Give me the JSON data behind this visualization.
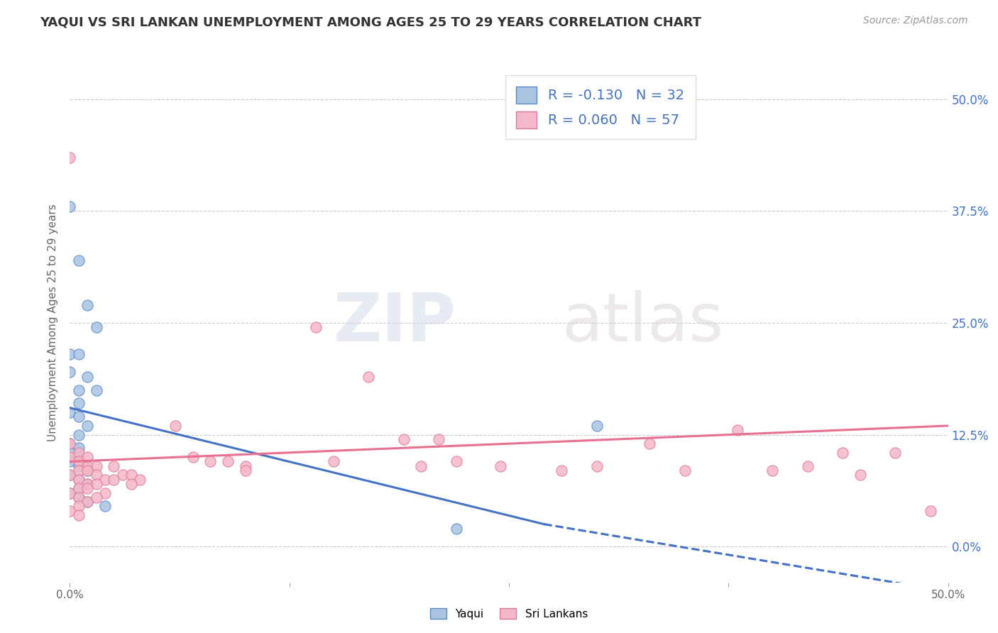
{
  "title": "YAQUI VS SRI LANKAN UNEMPLOYMENT AMONG AGES 25 TO 29 YEARS CORRELATION CHART",
  "source_text": "Source: ZipAtlas.com",
  "ylabel": "Unemployment Among Ages 25 to 29 years",
  "xlim": [
    0.0,
    0.5
  ],
  "ylim": [
    -0.04,
    0.54
  ],
  "y_ticks": [
    0.0,
    0.125,
    0.25,
    0.375,
    0.5
  ],
  "y_tick_labels_right": [
    "0.0%",
    "12.5%",
    "25.0%",
    "37.5%",
    "50.0%"
  ],
  "watermark_zip": "ZIP",
  "watermark_atlas": "atlas",
  "legend_yaqui_r": "-0.130",
  "legend_yaqui_n": "32",
  "legend_sri_r": "0.060",
  "legend_sri_n": "57",
  "yaqui_color": "#aac4e2",
  "sri_color": "#f5b8c8",
  "yaqui_edge_color": "#5588cc",
  "sri_edge_color": "#dd7799",
  "yaqui_line_color": "#4472c4",
  "sri_line_color": "#e87090",
  "yaqui_scatter": [
    [
      0.0,
      0.38
    ],
    [
      0.005,
      0.32
    ],
    [
      0.01,
      0.27
    ],
    [
      0.015,
      0.245
    ],
    [
      0.0,
      0.215
    ],
    [
      0.005,
      0.215
    ],
    [
      0.0,
      0.195
    ],
    [
      0.01,
      0.19
    ],
    [
      0.005,
      0.175
    ],
    [
      0.015,
      0.175
    ],
    [
      0.005,
      0.16
    ],
    [
      0.0,
      0.15
    ],
    [
      0.005,
      0.145
    ],
    [
      0.01,
      0.135
    ],
    [
      0.005,
      0.125
    ],
    [
      0.0,
      0.115
    ],
    [
      0.005,
      0.11
    ],
    [
      0.0,
      0.105
    ],
    [
      0.005,
      0.1
    ],
    [
      0.0,
      0.095
    ],
    [
      0.005,
      0.09
    ],
    [
      0.01,
      0.085
    ],
    [
      0.0,
      0.08
    ],
    [
      0.005,
      0.075
    ],
    [
      0.01,
      0.07
    ],
    [
      0.005,
      0.065
    ],
    [
      0.0,
      0.06
    ],
    [
      0.005,
      0.055
    ],
    [
      0.01,
      0.05
    ],
    [
      0.02,
      0.045
    ],
    [
      0.3,
      0.135
    ],
    [
      0.22,
      0.02
    ]
  ],
  "sri_scatter": [
    [
      0.0,
      0.435
    ],
    [
      0.0,
      0.115
    ],
    [
      0.005,
      0.105
    ],
    [
      0.0,
      0.1
    ],
    [
      0.005,
      0.095
    ],
    [
      0.01,
      0.09
    ],
    [
      0.005,
      0.085
    ],
    [
      0.0,
      0.08
    ],
    [
      0.005,
      0.075
    ],
    [
      0.01,
      0.07
    ],
    [
      0.005,
      0.065
    ],
    [
      0.0,
      0.06
    ],
    [
      0.005,
      0.055
    ],
    [
      0.01,
      0.05
    ],
    [
      0.005,
      0.045
    ],
    [
      0.0,
      0.04
    ],
    [
      0.005,
      0.035
    ],
    [
      0.01,
      0.1
    ],
    [
      0.015,
      0.09
    ],
    [
      0.01,
      0.085
    ],
    [
      0.015,
      0.08
    ],
    [
      0.02,
      0.075
    ],
    [
      0.015,
      0.07
    ],
    [
      0.01,
      0.065
    ],
    [
      0.02,
      0.06
    ],
    [
      0.015,
      0.055
    ],
    [
      0.025,
      0.09
    ],
    [
      0.03,
      0.08
    ],
    [
      0.025,
      0.075
    ],
    [
      0.035,
      0.08
    ],
    [
      0.04,
      0.075
    ],
    [
      0.035,
      0.07
    ],
    [
      0.06,
      0.135
    ],
    [
      0.07,
      0.1
    ],
    [
      0.08,
      0.095
    ],
    [
      0.09,
      0.095
    ],
    [
      0.1,
      0.09
    ],
    [
      0.1,
      0.085
    ],
    [
      0.14,
      0.245
    ],
    [
      0.15,
      0.095
    ],
    [
      0.17,
      0.19
    ],
    [
      0.19,
      0.12
    ],
    [
      0.2,
      0.09
    ],
    [
      0.21,
      0.12
    ],
    [
      0.22,
      0.095
    ],
    [
      0.245,
      0.09
    ],
    [
      0.28,
      0.085
    ],
    [
      0.3,
      0.09
    ],
    [
      0.33,
      0.115
    ],
    [
      0.35,
      0.085
    ],
    [
      0.38,
      0.13
    ],
    [
      0.4,
      0.085
    ],
    [
      0.42,
      0.09
    ],
    [
      0.44,
      0.105
    ],
    [
      0.45,
      0.08
    ],
    [
      0.47,
      0.105
    ],
    [
      0.49,
      0.04
    ]
  ],
  "yaqui_trendline_solid": [
    [
      0.0,
      0.155
    ],
    [
      0.27,
      0.025
    ]
  ],
  "yaqui_trendline_dash": [
    [
      0.27,
      0.025
    ],
    [
      0.5,
      -0.05
    ]
  ],
  "sri_trendline": [
    [
      0.0,
      0.095
    ],
    [
      0.5,
      0.135
    ]
  ],
  "background_color": "#ffffff",
  "grid_color": "#cccccc",
  "title_color": "#333333",
  "label_color": "#4472c4"
}
